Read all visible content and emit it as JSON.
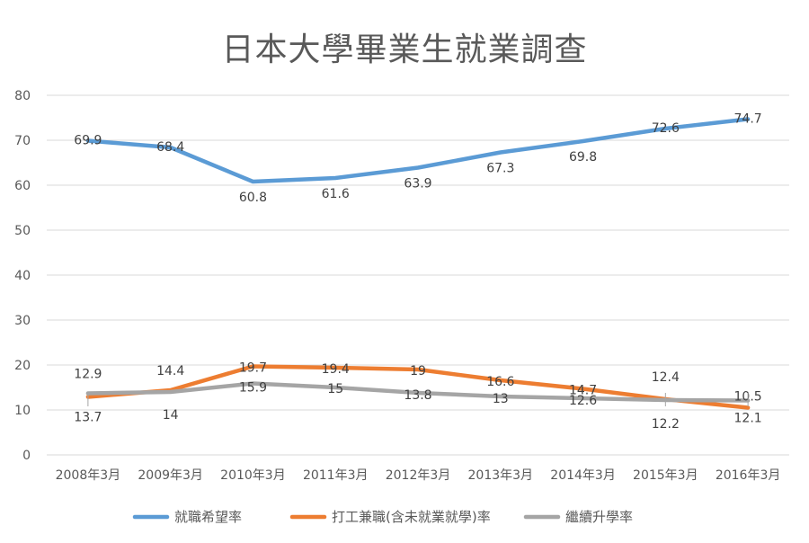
{
  "chart_data": {
    "type": "line",
    "title": "日本大學畢業生就業調查",
    "categories": [
      "2008年3月",
      "2009年3月",
      "2010年3月",
      "2011年3月",
      "2012年3月",
      "2013年3月",
      "2014年3月",
      "2015年3月",
      "2016年3月"
    ],
    "ylim": [
      0,
      80
    ],
    "yticks": [
      0,
      10,
      20,
      30,
      40,
      50,
      60,
      70,
      80
    ],
    "grid": true,
    "legend_position": "bottom",
    "series": [
      {
        "name": "就職希望率",
        "color": "#5B9BD5",
        "values": [
          69.9,
          68.4,
          60.8,
          61.6,
          63.9,
          67.3,
          69.8,
          72.6,
          74.7
        ],
        "labels": [
          "69.9",
          "68.4",
          "60.8",
          "61.6",
          "63.9",
          "67.3",
          "69.8",
          "72.6",
          "74.7"
        ]
      },
      {
        "name": "打工兼職(含未就業就學)率",
        "color": "#ED7D31",
        "values": [
          12.9,
          14.4,
          19.7,
          19.4,
          19,
          16.6,
          14.7,
          12.4,
          10.5
        ],
        "labels": [
          "12.9",
          "14.4",
          "19.7",
          "19.4",
          "19",
          "16.6",
          "14.7",
          "12.4",
          "10.5"
        ]
      },
      {
        "name": "繼續升學率",
        "color": "#A5A5A5",
        "values": [
          13.7,
          14,
          15.9,
          15,
          13.8,
          13,
          12.6,
          12.2,
          12.1
        ],
        "labels": [
          "13.7",
          "14",
          "15.9",
          "15",
          "13.8",
          "13",
          "12.6",
          "12.2",
          "12.1"
        ]
      }
    ]
  }
}
